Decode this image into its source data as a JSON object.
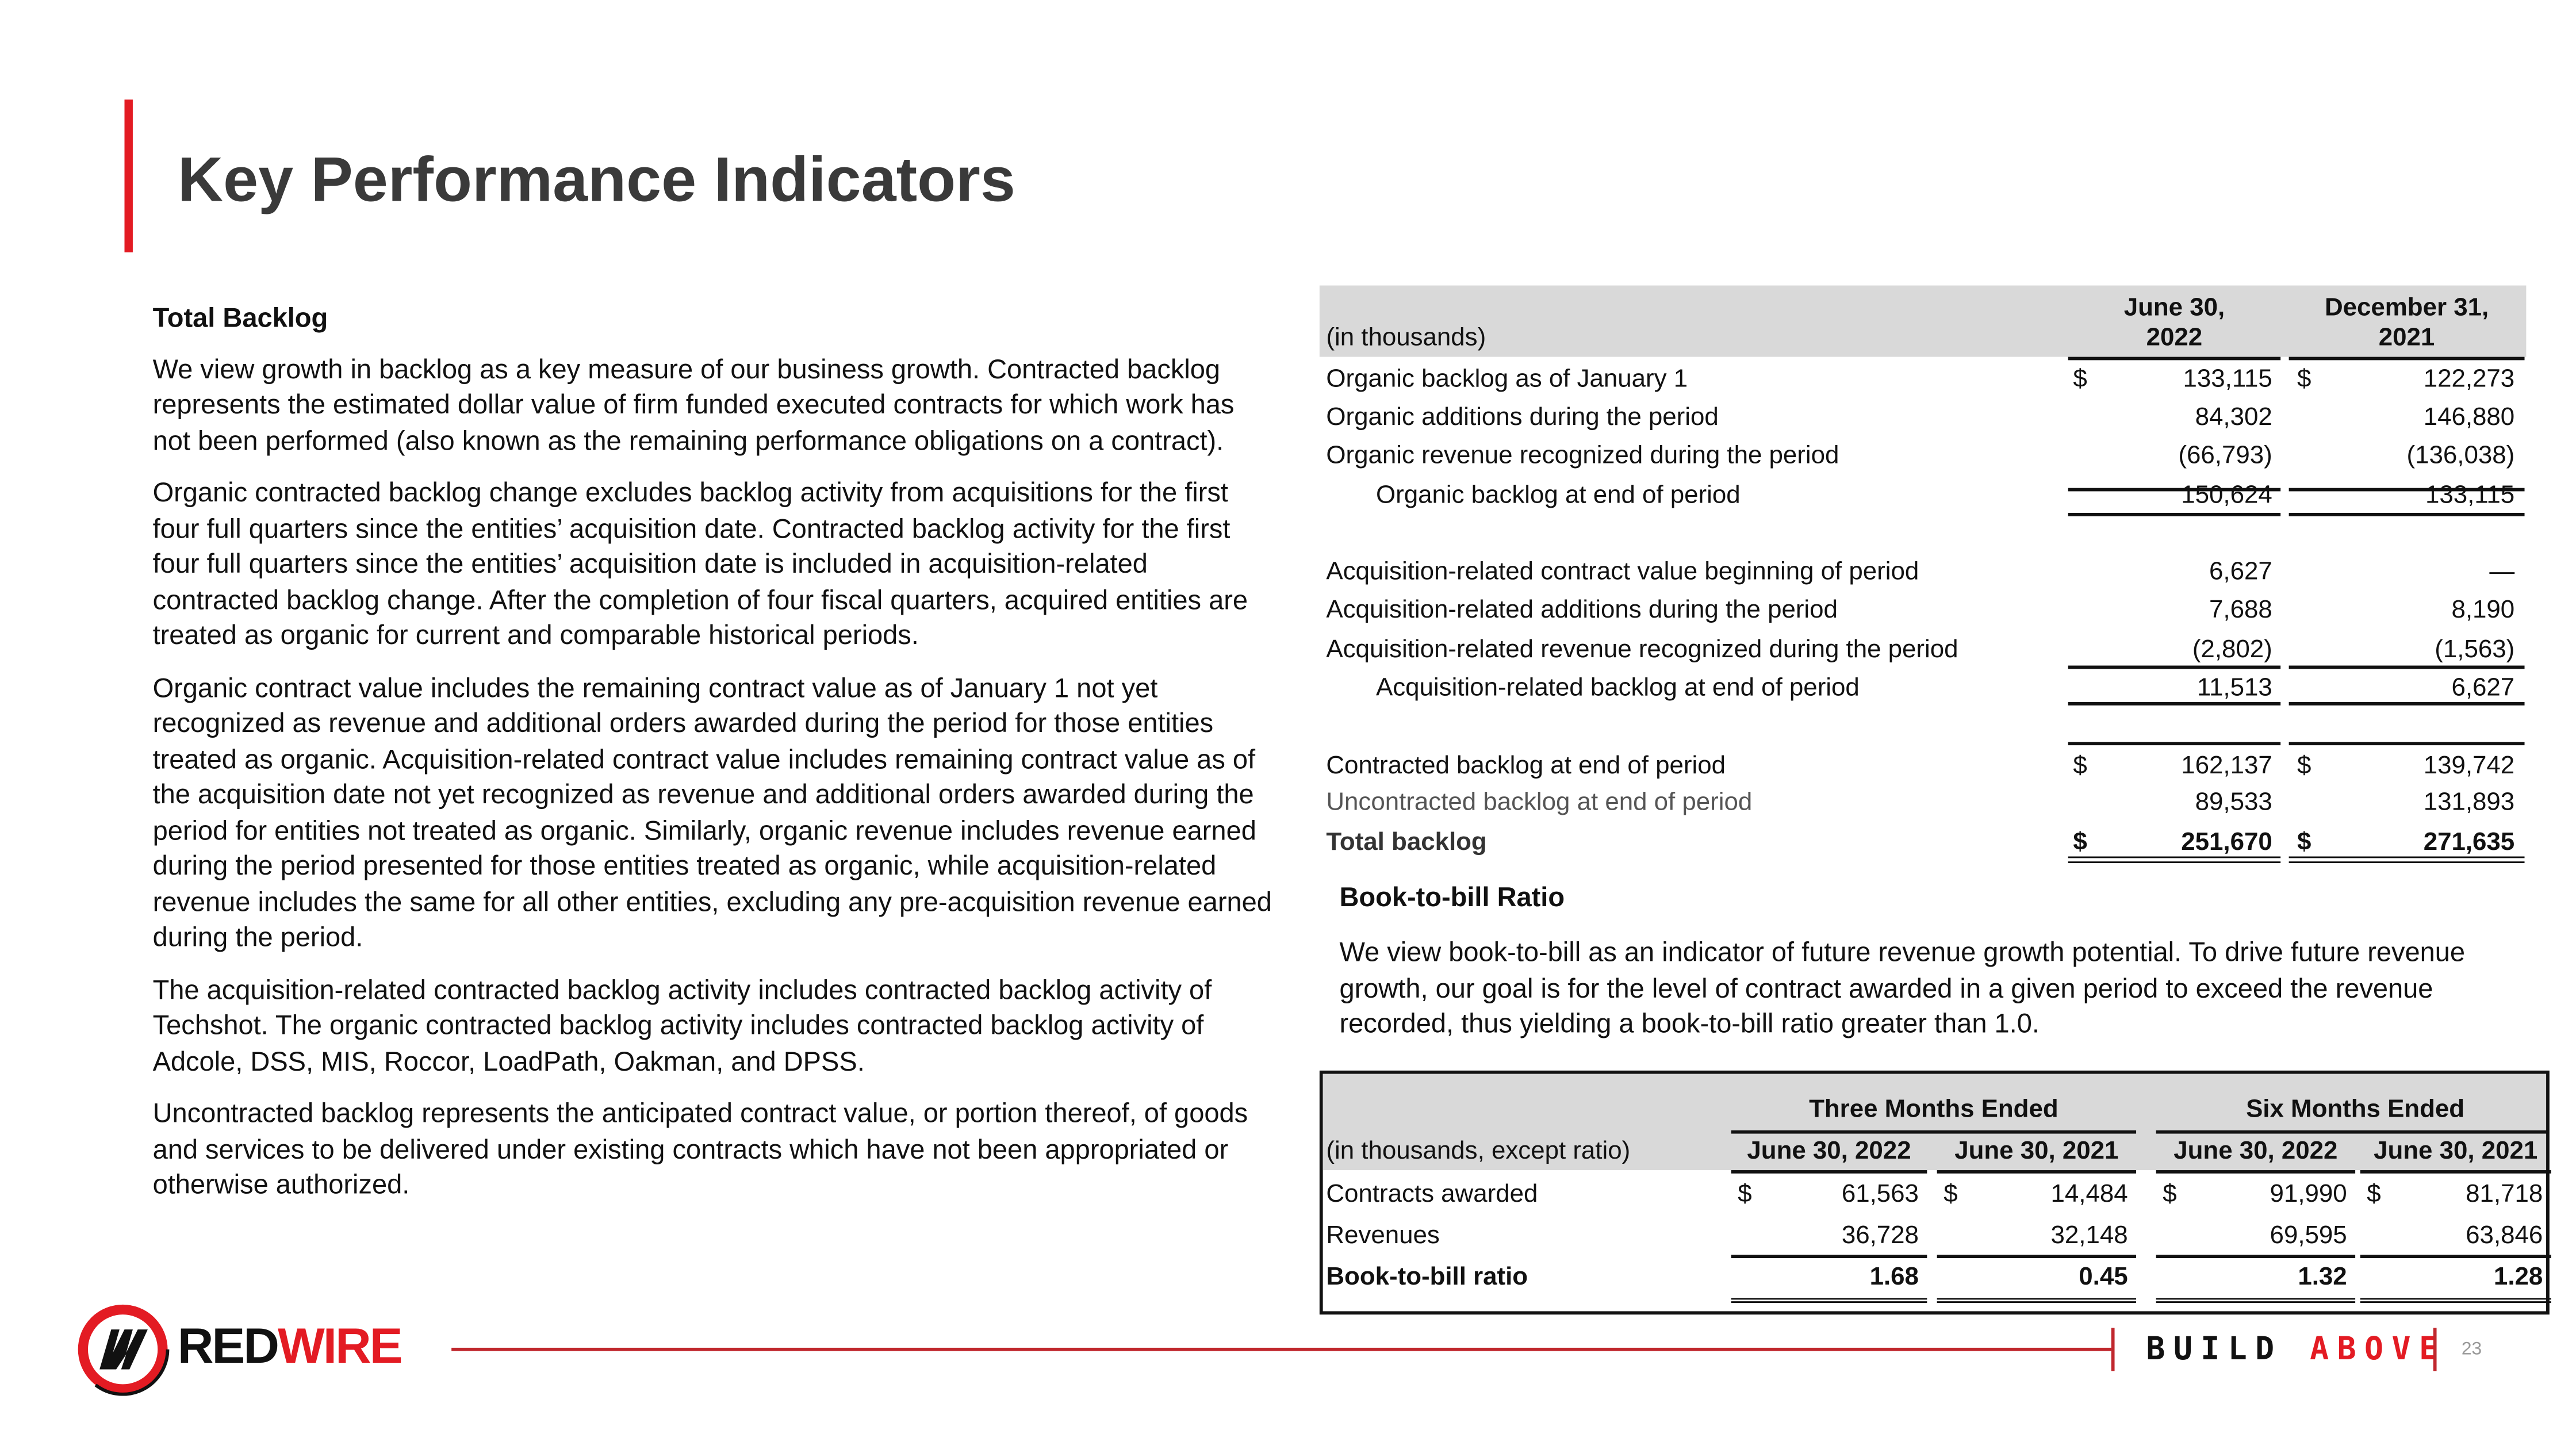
{
  "title": "Key Performance Indicators",
  "left": {
    "heading": "Total Backlog",
    "paragraphs": [
      "We view growth in backlog as a key measure of our business growth. Contracted backlog represents the estimated dollar value of firm funded executed contracts for which work has not been performed (also known as the remaining performance obligations on a contract).",
      "Organic contracted backlog change excludes backlog activity from acquisitions for the first four full quarters since the entities’ acquisition date. Contracted backlog activity for the first four full quarters since the entities’ acquisition date is included in acquisition-related contracted backlog change. After the completion of four fiscal quarters, acquired entities are treated as organic for current and comparable historical periods.",
      "Organic contract value includes the remaining contract value as of January 1 not yet recognized as revenue and additional orders awarded during the period for those entities treated as organic. Acquisition-related contract value includes remaining contract value as of the acquisition date not yet recognized as revenue and additional orders awarded during the period for entities not treated as organic. Similarly, organic revenue includes revenue earned during the period presented for those entities treated as organic, while acquisition-related revenue includes the same for all other entities, excluding any pre-acquisition revenue earned during the period.",
      "The acquisition-related contracted backlog activity includes contracted backlog activity of Techshot. The organic contracted backlog activity includes contracted backlog activity of Adcole, DSS, MIS, Roccor, LoadPath, Oakman, and DPSS.",
      "Uncontracted backlog represents the anticipated contract value, or portion thereof, of goods and services to be delivered under existing contracts which have not been appropriated or otherwise authorized."
    ]
  },
  "backlog_table": {
    "unit_label": "(in thousands)",
    "col1": [
      "June 30,",
      "2022"
    ],
    "col2": [
      "December 31,",
      "2021"
    ],
    "rows": [
      {
        "label": "Organic backlog as of January 1",
        "d1": "$",
        "v1": "133,115",
        "d2": "$",
        "v2": "122,273"
      },
      {
        "label": "Organic additions during the period",
        "v1": "84,302",
        "v2": "146,880"
      },
      {
        "label": "Organic revenue recognized during the period",
        "v1": "(66,793)",
        "v2": "(136,038)"
      },
      {
        "label": "Organic backlog at end of period",
        "v1": "150,624",
        "v2": "133,115"
      },
      {
        "label": "Acquisition-related contract value beginning of period",
        "v1": "6,627",
        "v2": "—"
      },
      {
        "label": "Acquisition-related additions during the period",
        "v1": "7,688",
        "v2": "8,190"
      },
      {
        "label": "Acquisition-related revenue recognized during the period",
        "v1": "(2,802)",
        "v2": "(1,563)"
      },
      {
        "label": "Acquisition-related backlog at end of period",
        "v1": "11,513",
        "v2": "6,627"
      },
      {
        "label": "Contracted backlog at end of period",
        "d1": "$",
        "v1": "162,137",
        "d2": "$",
        "v2": "139,742"
      },
      {
        "label": "Uncontracted backlog at end of period",
        "v1": "89,533",
        "v2": "131,893"
      },
      {
        "label": "Total backlog",
        "d1": "$",
        "v1": "251,670",
        "d2": "$",
        "v2": "271,635"
      }
    ]
  },
  "book_to_bill": {
    "heading": "Book-to-bill Ratio",
    "text": "We view book-to-bill as an indicator of future revenue growth potential. To drive future revenue growth, our goal is for the level of contract awarded in a given period to exceed the revenue recorded, thus yielding a book-to-bill ratio greater than 1.0."
  },
  "btb_table": {
    "unit_label": "(in thousands, except ratio)",
    "groups": [
      "Three Months Ended",
      "Six Months Ended"
    ],
    "cols": [
      "June 30, 2022",
      "June 30, 2021",
      "June 30, 2022",
      "June 30, 2021"
    ],
    "rows": [
      {
        "label": "Contracts awarded",
        "dollar": "$",
        "values": [
          "61,563",
          "14,484",
          "91,990",
          "81,718"
        ]
      },
      {
        "label": "Revenues",
        "values": [
          "36,728",
          "32,148",
          "69,595",
          "63,846"
        ]
      },
      {
        "label": "Book-to-bill ratio",
        "values": [
          "1.68",
          "0.45",
          "1.32",
          "1.28"
        ]
      }
    ]
  },
  "footer": {
    "logo_text": "REDWIRE",
    "logo_red": "WIRE",
    "logo_black": "RED",
    "tagline_1": "BUILD",
    "tagline_2": "ABOVE",
    "page": "23"
  },
  "colors": {
    "accent": "#e31b23",
    "header_bg": "#d9d9d9"
  }
}
